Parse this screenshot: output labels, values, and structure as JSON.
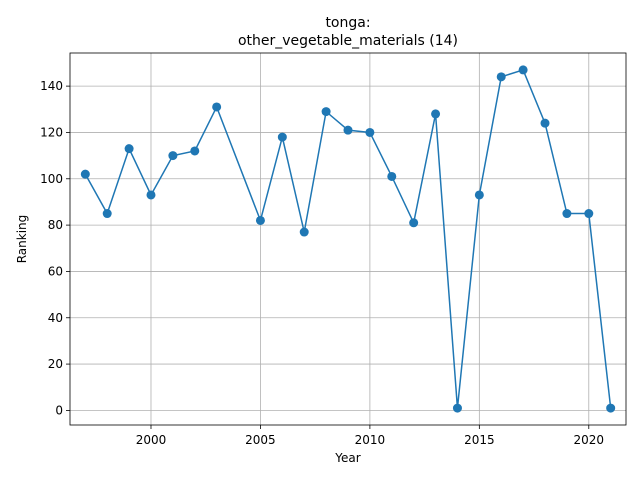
{
  "chart_data": {
    "type": "line",
    "title_line1": "tonga:",
    "title_line2": "other_vegetable_materials (14)",
    "xlabel": "Year",
    "ylabel": "Ranking",
    "xlim": [
      1996.3,
      2021.7
    ],
    "ylim": [
      -6.3,
      154.3
    ],
    "xticks": [
      2000,
      2005,
      2010,
      2015,
      2020
    ],
    "yticks": [
      0,
      20,
      40,
      60,
      80,
      100,
      120,
      140
    ],
    "grid": true,
    "color": "#1f77b4",
    "series": [
      {
        "x": [
          1997,
          1998,
          1999,
          2000,
          2001,
          2002,
          2003,
          2005,
          2006,
          2007,
          2008,
          2009,
          2010,
          2011,
          2012,
          2013,
          2014,
          2015,
          2016,
          2017,
          2018,
          2019,
          2020,
          2021
        ],
        "y": [
          102,
          85,
          113,
          93,
          110,
          112,
          131,
          82,
          118,
          77,
          129,
          121,
          120,
          101,
          81,
          128,
          1,
          93,
          144,
          147,
          124,
          85,
          85,
          1
        ]
      }
    ]
  }
}
